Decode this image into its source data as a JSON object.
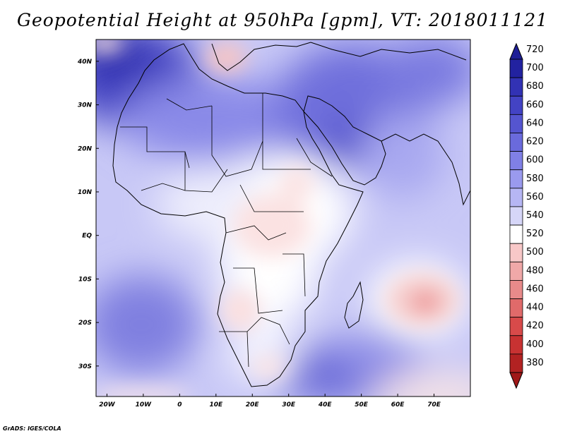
{
  "title": "Geopotential Height at 950hPa [gpm], VT: 2018011121",
  "credit": "GrADS: IGES/COLA",
  "map": {
    "variable": "Geopotential Height at 950hPa",
    "units": "gpm",
    "valid_time": "2018011121",
    "lon_range": [
      -23,
      80
    ],
    "lat_range": [
      -37,
      45
    ],
    "lat_ticks": [
      {
        "value": 40,
        "label": "40N"
      },
      {
        "value": 30,
        "label": "30N"
      },
      {
        "value": 20,
        "label": "20N"
      },
      {
        "value": 10,
        "label": "10N"
      },
      {
        "value": 0,
        "label": "EQ"
      },
      {
        "value": -10,
        "label": "10S"
      },
      {
        "value": -20,
        "label": "20S"
      },
      {
        "value": -30,
        "label": "30S"
      }
    ],
    "lon_ticks": [
      {
        "value": -20,
        "label": "20W"
      },
      {
        "value": -10,
        "label": "10W"
      },
      {
        "value": 0,
        "label": "0"
      },
      {
        "value": 10,
        "label": "10E"
      },
      {
        "value": 20,
        "label": "20E"
      },
      {
        "value": 30,
        "label": "30E"
      },
      {
        "value": 40,
        "label": "40E"
      },
      {
        "value": 50,
        "label": "50E"
      },
      {
        "value": 60,
        "label": "60E"
      },
      {
        "value": 70,
        "label": "70E"
      }
    ]
  },
  "colorbar": {
    "levels": [
      "720",
      "700",
      "680",
      "660",
      "640",
      "620",
      "600",
      "580",
      "560",
      "540",
      "520",
      "500",
      "480",
      "460",
      "440",
      "420",
      "400",
      "380"
    ],
    "colors": [
      "#2222a0",
      "#3232b4",
      "#4343c4",
      "#5555d0",
      "#6a6adc",
      "#8080e6",
      "#9a9aee",
      "#b6b6f4",
      "#d6d6f8",
      "#ffffff",
      "#f8c8c8",
      "#f0a8a8",
      "#e88a8a",
      "#e06a6a",
      "#d84a4a",
      "#c83232",
      "#b22222"
    ],
    "top_arrow_color": "#1e1e96",
    "bottom_arrow_color": "#a01818"
  },
  "features": [
    {
      "name": "high-north-atlantic",
      "lon": -20,
      "lat": 38,
      "value": 700
    },
    {
      "name": "high-arabia",
      "lon": 45,
      "lat": 22,
      "value": 650
    },
    {
      "name": "high-south-atlantic",
      "lon": -10,
      "lat": -22,
      "value": 620
    },
    {
      "name": "high-south-indian",
      "lon": 42,
      "lat": -33,
      "value": 640
    },
    {
      "name": "low-indian-ocean",
      "lon": 68,
      "lat": -16,
      "value": 460
    },
    {
      "name": "low-central-africa",
      "lon": 27,
      "lat": -4,
      "value": 515
    },
    {
      "name": "low-italy",
      "lon": 12,
      "lat": 42,
      "value": 510
    },
    {
      "name": "low-south-africa-west",
      "lon": 18,
      "lat": -19,
      "value": 515
    }
  ]
}
